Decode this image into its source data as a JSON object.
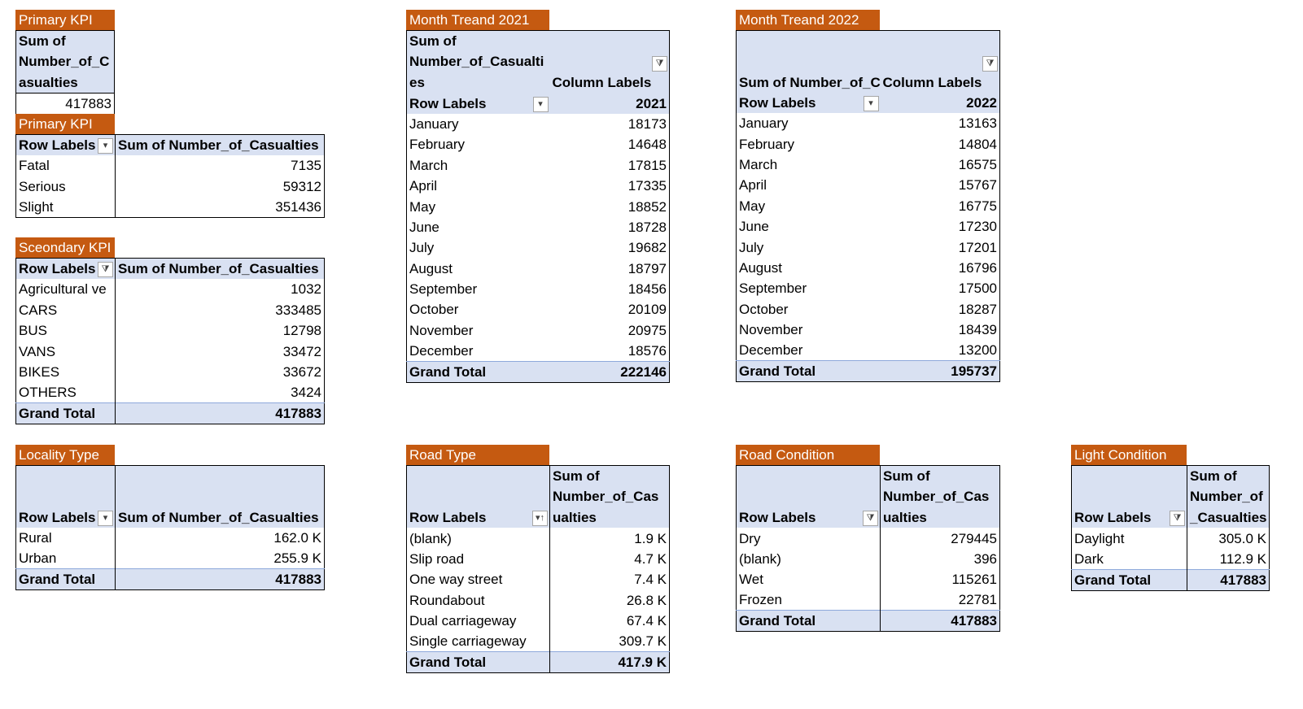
{
  "primary_kpi_total": {
    "tag": "Primary KPI",
    "header": [
      "Sum of",
      "Number_of_C",
      "asualties"
    ],
    "value": "417883"
  },
  "primary_kpi_severity": {
    "tag": "Primary KPI",
    "row_labels": "Row Labels",
    "value_header": "Sum of Number_of_Casualties",
    "rows": [
      {
        "label": "Fatal",
        "value": "7135"
      },
      {
        "label": "Serious",
        "value": "59312"
      },
      {
        "label": "Slight",
        "value": "351436"
      }
    ]
  },
  "secondary_kpi": {
    "tag": "Sceondary KPI",
    "row_labels": "Row Labels",
    "value_header": "Sum of Number_of_Casualties",
    "rows": [
      {
        "label": "Agricultural ve",
        "value": "1032"
      },
      {
        "label": "CARS",
        "value": "333485"
      },
      {
        "label": "BUS",
        "value": "12798"
      },
      {
        "label": "VANS",
        "value": "33472"
      },
      {
        "label": "BIKES",
        "value": "33672"
      },
      {
        "label": "OTHERS",
        "value": "3424"
      }
    ],
    "grand_total_label": "Grand Total",
    "grand_total": "417883"
  },
  "month_trend_2021": {
    "tag": "Month Treand 2021",
    "header_lines": [
      "Sum of",
      "Number_of_Casualti",
      "es"
    ],
    "column_labels": "Column Labels",
    "row_labels": "Row Labels",
    "year": "2021",
    "rows": [
      {
        "label": "January",
        "value": "18173"
      },
      {
        "label": "February",
        "value": "14648"
      },
      {
        "label": "March",
        "value": "17815"
      },
      {
        "label": "April",
        "value": "17335"
      },
      {
        "label": "May",
        "value": "18852"
      },
      {
        "label": "June",
        "value": "18728"
      },
      {
        "label": "July",
        "value": "19682"
      },
      {
        "label": "August",
        "value": "18797"
      },
      {
        "label": "September",
        "value": "18456"
      },
      {
        "label": "October",
        "value": "20109"
      },
      {
        "label": "November",
        "value": "20975"
      },
      {
        "label": "December",
        "value": "18576"
      }
    ],
    "grand_total_label": "Grand Total",
    "grand_total": "222146"
  },
  "month_trend_2022": {
    "tag": "Month Treand 2022",
    "header_line": "Sum of Number_of_C",
    "column_labels": "Column Labels",
    "row_labels": "Row Labels",
    "year": "2022",
    "rows": [
      {
        "label": "January",
        "value": "13163"
      },
      {
        "label": "February",
        "value": "14804"
      },
      {
        "label": "March",
        "value": "16575"
      },
      {
        "label": "April",
        "value": "15767"
      },
      {
        "label": "May",
        "value": "16775"
      },
      {
        "label": "June",
        "value": "17230"
      },
      {
        "label": "July",
        "value": "17201"
      },
      {
        "label": "August",
        "value": "16796"
      },
      {
        "label": "September",
        "value": "17500"
      },
      {
        "label": "October",
        "value": "18287"
      },
      {
        "label": "November",
        "value": "18439"
      },
      {
        "label": "December",
        "value": "13200"
      }
    ],
    "grand_total_label": "Grand Total",
    "grand_total": "195737"
  },
  "locality_type": {
    "tag": "Locality Type",
    "row_labels": "Row Labels",
    "value_header": "Sum of Number_of_Casualties",
    "rows": [
      {
        "label": "Rural",
        "value": "162.0 K"
      },
      {
        "label": "Urban",
        "value": "255.9 K"
      }
    ],
    "grand_total_label": "Grand Total",
    "grand_total": "417883"
  },
  "road_type": {
    "tag": "Road Type",
    "row_labels": "Row Labels",
    "header_lines": [
      "Sum of",
      "Number_of_Cas",
      "ualties"
    ],
    "rows": [
      {
        "label": "(blank)",
        "value": "1.9 K"
      },
      {
        "label": "Slip road",
        "value": "4.7 K"
      },
      {
        "label": "One way street",
        "value": "7.4 K"
      },
      {
        "label": "Roundabout",
        "value": "26.8 K"
      },
      {
        "label": "Dual carriageway",
        "value": "67.4 K"
      },
      {
        "label": "Single carriageway",
        "value": "309.7 K"
      }
    ],
    "grand_total_label": "Grand Total",
    "grand_total": "417.9 K"
  },
  "road_condition": {
    "tag": "Road Condition",
    "row_labels": "Row Labels",
    "header_lines": [
      "Sum of",
      "Number_of_Cas",
      "ualties"
    ],
    "rows": [
      {
        "label": "Dry",
        "value": "279445"
      },
      {
        "label": "(blank)",
        "value": "396"
      },
      {
        "label": "Wet",
        "value": "115261"
      },
      {
        "label": "Frozen",
        "value": "22781"
      }
    ],
    "grand_total_label": "Grand Total",
    "grand_total": "417883"
  },
  "light_condition": {
    "tag": "Light Condition",
    "row_labels": "Row Labels",
    "header_lines": [
      "Sum of",
      "Number_of",
      "_Casualties"
    ],
    "rows": [
      {
        "label": "Daylight",
        "value": "305.0 K"
      },
      {
        "label": "Dark",
        "value": "112.9 K"
      }
    ],
    "grand_total_label": "Grand Total",
    "grand_total": "417883"
  },
  "icons": {
    "filter": "filter-icon",
    "dropdown": "dropdown-arrow-icon",
    "sort": "sort-ascending-icon"
  }
}
